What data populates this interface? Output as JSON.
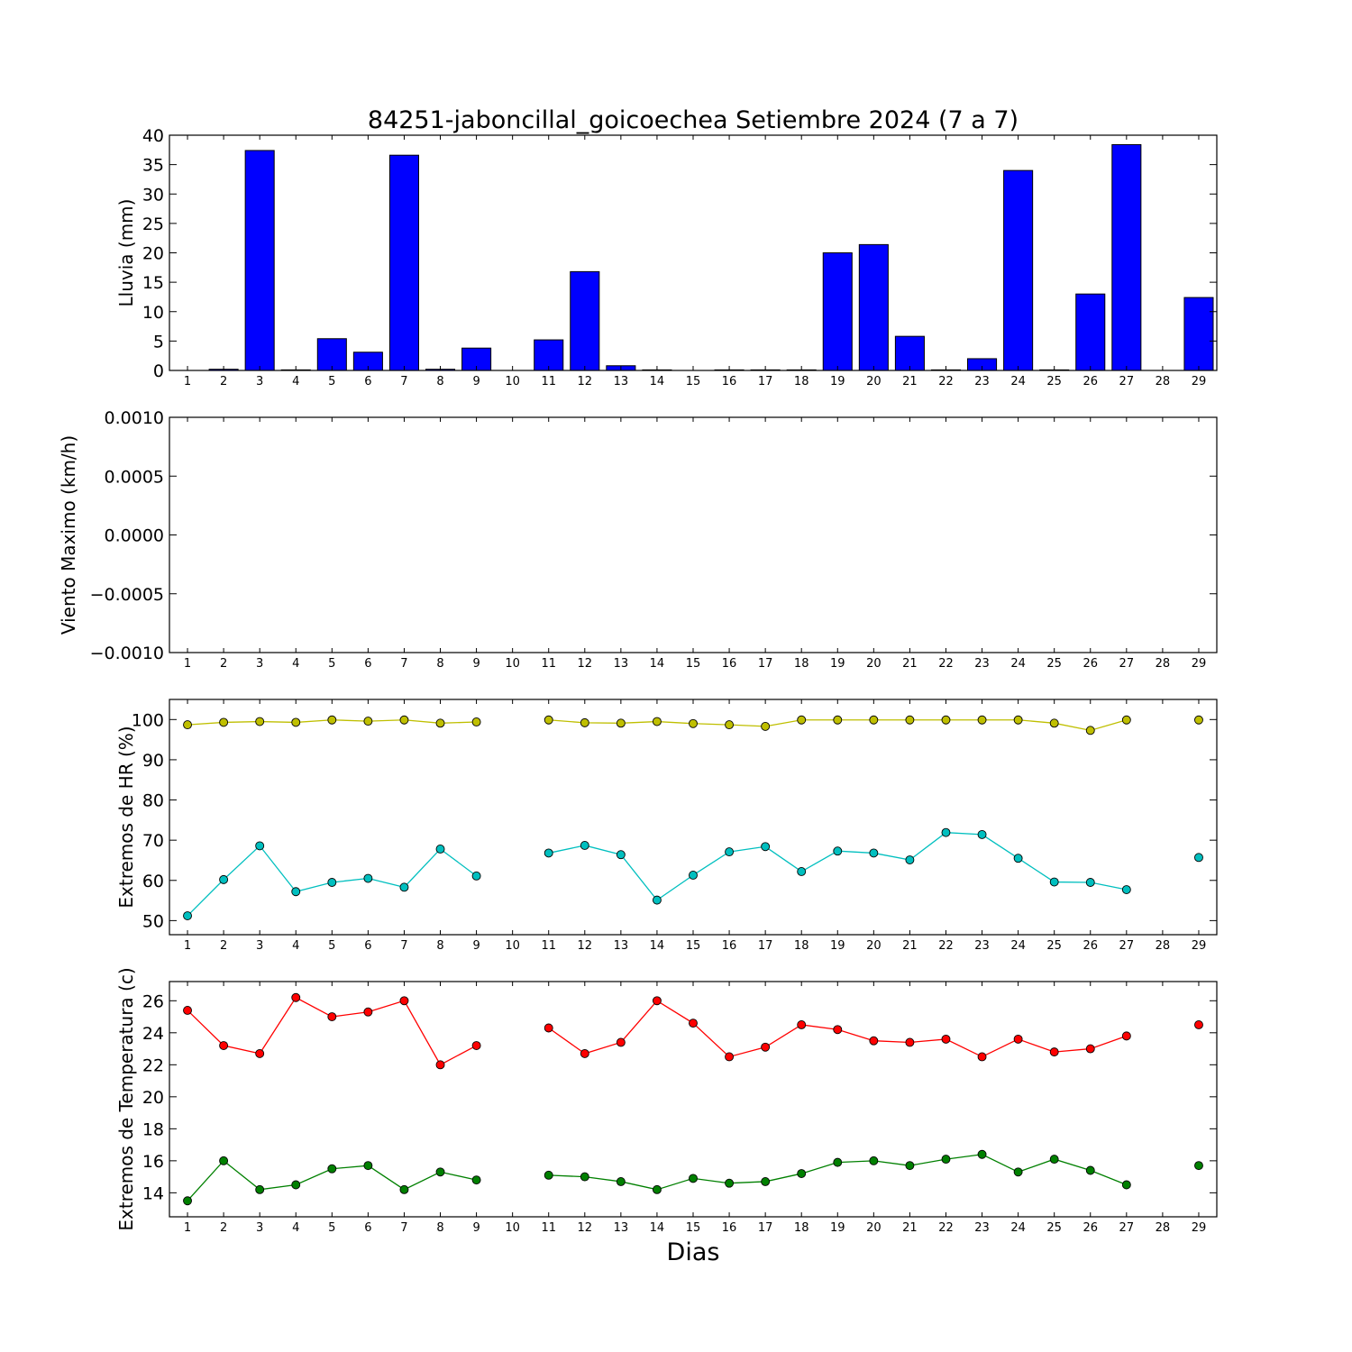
{
  "title": "84251-jaboncillal_goicoechea Setiembre 2024  (7 a 7)",
  "xlabel": "Dias",
  "colors": {
    "rain": "#0000ff",
    "hr_max": "#bfbf00",
    "hr_min": "#00bfbf",
    "temp_max": "#ff0000",
    "temp_min": "#008000"
  },
  "chart_data": [
    {
      "type": "bar",
      "title": "84251-jaboncillal_goicoechea Setiembre 2024  (7 a 7)",
      "ylabel": "Lluvia (mm)",
      "categories": [
        "1",
        "2",
        "3",
        "4",
        "5",
        "6",
        "7",
        "8",
        "9",
        "10",
        "11",
        "12",
        "13",
        "14",
        "15",
        "16",
        "17",
        "18",
        "19",
        "20",
        "21",
        "22",
        "23",
        "24",
        "25",
        "26",
        "27",
        "28",
        "29"
      ],
      "values": [
        0,
        0.2,
        37.4,
        0.1,
        5.4,
        3.1,
        36.6,
        0.2,
        3.8,
        0,
        5.2,
        16.8,
        0.8,
        0.1,
        0,
        0.1,
        0.1,
        0.1,
        20.0,
        21.4,
        5.8,
        0.1,
        2.0,
        34.0,
        0.1,
        13.0,
        38.4,
        0,
        12.4
      ],
      "ylim": [
        0,
        40
      ],
      "yticks": [
        0,
        5,
        10,
        15,
        20,
        25,
        30,
        35,
        40
      ],
      "grid": false
    },
    {
      "type": "line",
      "ylabel": "Viento Maximo (km/h)",
      "categories": [
        "1",
        "2",
        "3",
        "4",
        "5",
        "6",
        "7",
        "8",
        "9",
        "10",
        "11",
        "12",
        "13",
        "14",
        "15",
        "16",
        "17",
        "18",
        "19",
        "20",
        "21",
        "22",
        "23",
        "24",
        "25",
        "26",
        "27",
        "28",
        "29"
      ],
      "series": [],
      "ylim": [
        -0.001,
        0.001
      ],
      "yticks": [
        "−0.0010",
        "−0.0005",
        "0.0000",
        "0.0005",
        "0.0010"
      ],
      "grid": false
    },
    {
      "type": "line",
      "ylabel": "Extremos de HR (%)",
      "categories": [
        "1",
        "2",
        "3",
        "4",
        "5",
        "6",
        "7",
        "8",
        "9",
        "10",
        "11",
        "12",
        "13",
        "14",
        "15",
        "16",
        "17",
        "18",
        "19",
        "20",
        "21",
        "22",
        "23",
        "24",
        "25",
        "26",
        "27",
        "28",
        "29"
      ],
      "series": [
        {
          "values": [
            98.7,
            99.3,
            99.5,
            99.3,
            99.9,
            99.6,
            99.9,
            99.1,
            99.4,
            null,
            99.9,
            99.2,
            99.1,
            99.5,
            99.0,
            98.7,
            98.3,
            99.9,
            99.9,
            99.9,
            99.9,
            99.9,
            99.9,
            99.9,
            99.1,
            97.3,
            99.9,
            null,
            99.9
          ],
          "color": "#bfbf00"
        },
        {
          "values": [
            51.2,
            60.2,
            68.6,
            57.2,
            59.5,
            60.5,
            58.3,
            67.8,
            61.1,
            null,
            66.8,
            68.7,
            66.4,
            55.1,
            61.3,
            67.1,
            68.4,
            62.2,
            67.3,
            66.8,
            65.1,
            71.9,
            71.4,
            65.5,
            59.6,
            59.5,
            57.7,
            null,
            65.7
          ],
          "color": "#00bfbf"
        }
      ],
      "ylim": [
        46.5,
        105
      ],
      "yticks": [
        50,
        60,
        70,
        80,
        90,
        100
      ],
      "grid": false
    },
    {
      "type": "line",
      "ylabel": "Extremos de Temperatura (c)",
      "categories": [
        "1",
        "2",
        "3",
        "4",
        "5",
        "6",
        "7",
        "8",
        "9",
        "10",
        "11",
        "12",
        "13",
        "14",
        "15",
        "16",
        "17",
        "18",
        "19",
        "20",
        "21",
        "22",
        "23",
        "24",
        "25",
        "26",
        "27",
        "28",
        "29"
      ],
      "series": [
        {
          "values": [
            25.4,
            23.2,
            22.7,
            26.2,
            25.0,
            25.3,
            26.0,
            22.0,
            23.2,
            null,
            24.3,
            22.7,
            23.4,
            26.0,
            24.6,
            22.5,
            23.1,
            24.5,
            24.2,
            23.5,
            23.4,
            23.6,
            22.5,
            23.6,
            22.8,
            23.0,
            23.8,
            null,
            24.5
          ],
          "color": "#ff0000"
        },
        {
          "values": [
            13.5,
            16.0,
            14.2,
            14.5,
            15.5,
            15.7,
            14.2,
            15.3,
            14.8,
            null,
            15.1,
            15.0,
            14.7,
            14.2,
            14.9,
            14.6,
            14.7,
            15.2,
            15.9,
            16.0,
            15.7,
            16.1,
            16.4,
            15.3,
            16.1,
            15.4,
            14.5,
            null,
            15.7
          ],
          "color": "#008000"
        }
      ],
      "ylim": [
        12.5,
        27.2
      ],
      "yticks": [
        14,
        16,
        18,
        20,
        22,
        24,
        26
      ],
      "grid": false
    }
  ]
}
